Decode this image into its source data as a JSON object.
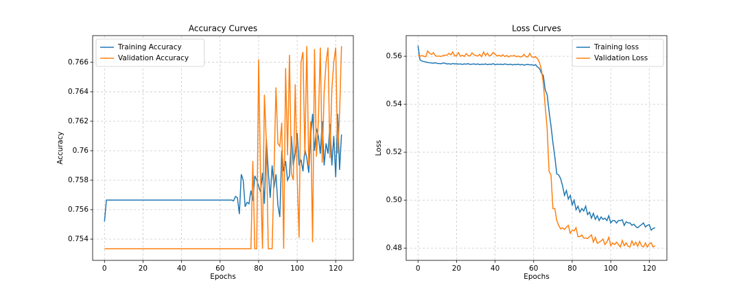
{
  "chart_data": [
    {
      "type": "line",
      "title": "Accuracy Curves",
      "x_label": "Epochs",
      "y_label": "Accuracy",
      "grid": true,
      "legend": "upper left",
      "x": [
        0,
        1,
        2,
        3,
        4,
        5,
        6,
        7,
        8,
        9,
        10,
        11,
        12,
        13,
        14,
        15,
        16,
        17,
        18,
        19,
        20,
        21,
        22,
        23,
        24,
        25,
        26,
        27,
        28,
        29,
        30,
        31,
        32,
        33,
        34,
        35,
        36,
        37,
        38,
        39,
        40,
        41,
        42,
        43,
        44,
        45,
        46,
        47,
        48,
        49,
        50,
        51,
        52,
        53,
        54,
        55,
        56,
        57,
        58,
        59,
        60,
        61,
        62,
        63,
        64,
        65,
        66,
        67,
        68,
        69,
        70,
        71,
        72,
        73,
        74,
        75,
        76,
        77,
        78,
        79,
        80,
        81,
        82,
        83,
        84,
        85,
        86,
        87,
        88,
        89,
        90,
        91,
        92,
        93,
        94,
        95,
        96,
        97,
        98,
        99,
        100,
        101,
        102,
        103,
        104,
        105,
        106,
        107,
        108,
        109,
        110,
        111,
        112,
        113,
        114,
        115,
        116,
        117,
        118,
        119,
        120,
        121,
        122,
        123
      ],
      "xlim": [
        -6.15,
        129.15
      ],
      "xticks": [
        0,
        20,
        40,
        60,
        80,
        100,
        120
      ],
      "ylim": [
        0.75256,
        0.76781
      ],
      "yticks": [
        0.754,
        0.756,
        0.758,
        0.76,
        0.762,
        0.764,
        0.766
      ],
      "series": [
        {
          "name": "Training Accuracy",
          "color": "#1f77b4",
          "values": [
            0.7552,
            0.75665,
            0.75665,
            0.75665,
            0.75665,
            0.75665,
            0.75665,
            0.75665,
            0.75665,
            0.75665,
            0.75665,
            0.75665,
            0.75665,
            0.75665,
            0.75665,
            0.75665,
            0.75665,
            0.75665,
            0.75665,
            0.75665,
            0.75665,
            0.75665,
            0.75665,
            0.75665,
            0.75665,
            0.75665,
            0.75665,
            0.75665,
            0.75665,
            0.75665,
            0.75665,
            0.75665,
            0.75665,
            0.75665,
            0.75665,
            0.75665,
            0.75665,
            0.75665,
            0.75665,
            0.75665,
            0.75665,
            0.75665,
            0.75665,
            0.75665,
            0.75665,
            0.75665,
            0.75665,
            0.75665,
            0.75665,
            0.75665,
            0.75665,
            0.75665,
            0.75665,
            0.75665,
            0.75665,
            0.75665,
            0.75665,
            0.75665,
            0.75665,
            0.75665,
            0.75665,
            0.75665,
            0.75665,
            0.75665,
            0.75665,
            0.75665,
            0.75665,
            0.7566,
            0.7569,
            0.7568,
            0.7557,
            0.7584,
            0.758,
            0.7562,
            0.7565,
            0.7564,
            0.7573,
            0.7566,
            0.7583,
            0.758,
            0.7576,
            0.7572,
            0.7585,
            0.7564,
            0.7608,
            0.7586,
            0.7568,
            0.759,
            0.7575,
            0.7584,
            0.7563,
            0.7555,
            0.76,
            0.7586,
            0.7593,
            0.758,
            0.7583,
            0.761,
            0.759,
            0.7598,
            0.7612,
            0.759,
            0.7594,
            0.7586,
            0.7601,
            0.7595,
            0.7585,
            0.761,
            0.7625,
            0.76,
            0.7615,
            0.761,
            0.7598,
            0.762,
            0.759,
            0.7605,
            0.7598,
            0.7618,
            0.759,
            0.761,
            0.7582,
            0.7625,
            0.7587,
            0.7611
          ]
        },
        {
          "name": "Validation Accuracy",
          "color": "#ff7f0e",
          "values": [
            0.75335,
            0.75335,
            0.75335,
            0.75335,
            0.75335,
            0.75335,
            0.75335,
            0.75335,
            0.75335,
            0.75335,
            0.75335,
            0.75335,
            0.75335,
            0.75335,
            0.75335,
            0.75335,
            0.75335,
            0.75335,
            0.75335,
            0.75335,
            0.75335,
            0.75335,
            0.75335,
            0.75335,
            0.75335,
            0.75335,
            0.75335,
            0.75335,
            0.75335,
            0.75335,
            0.75335,
            0.75335,
            0.75335,
            0.75335,
            0.75335,
            0.75335,
            0.75335,
            0.75335,
            0.75335,
            0.75335,
            0.75335,
            0.75335,
            0.75335,
            0.75335,
            0.75335,
            0.75335,
            0.75335,
            0.75335,
            0.75335,
            0.75335,
            0.75335,
            0.75335,
            0.75335,
            0.75335,
            0.75335,
            0.75335,
            0.75335,
            0.75335,
            0.75335,
            0.75335,
            0.75335,
            0.75335,
            0.75335,
            0.75335,
            0.75335,
            0.75335,
            0.75335,
            0.75335,
            0.75335,
            0.75335,
            0.75335,
            0.75335,
            0.75335,
            0.75335,
            0.75335,
            0.75335,
            0.75335,
            0.7593,
            0.75335,
            0.75335,
            0.7662,
            0.7582,
            0.75335,
            0.7638,
            0.7606,
            0.75335,
            0.75335,
            0.75335,
            0.7587,
            0.7643,
            0.7605,
            0.7603,
            0.7619,
            0.75335,
            0.7656,
            0.7597,
            0.7665,
            0.7585,
            0.758,
            0.7645,
            0.7582,
            0.7541,
            0.766,
            0.7667,
            0.7597,
            0.7671,
            0.759,
            0.762,
            0.7538,
            0.7669,
            0.7596,
            0.762,
            0.767,
            0.7592,
            0.764,
            0.766,
            0.767,
            0.7595,
            0.7642,
            0.766,
            0.767,
            0.7598,
            0.7625,
            0.7671
          ]
        }
      ]
    },
    {
      "type": "line",
      "title": "Loss Curves",
      "x_label": "Epochs",
      "y_label": "Loss",
      "grid": true,
      "legend": "upper right",
      "x": [
        0,
        1,
        2,
        3,
        4,
        5,
        6,
        7,
        8,
        9,
        10,
        11,
        12,
        13,
        14,
        15,
        16,
        17,
        18,
        19,
        20,
        21,
        22,
        23,
        24,
        25,
        26,
        27,
        28,
        29,
        30,
        31,
        32,
        33,
        34,
        35,
        36,
        37,
        38,
        39,
        40,
        41,
        42,
        43,
        44,
        45,
        46,
        47,
        48,
        49,
        50,
        51,
        52,
        53,
        54,
        55,
        56,
        57,
        58,
        59,
        60,
        61,
        62,
        63,
        64,
        65,
        66,
        67,
        68,
        69,
        70,
        71,
        72,
        73,
        74,
        75,
        76,
        77,
        78,
        79,
        80,
        81,
        82,
        83,
        84,
        85,
        86,
        87,
        88,
        89,
        90,
        91,
        92,
        93,
        94,
        95,
        96,
        97,
        98,
        99,
        100,
        101,
        102,
        103,
        104,
        105,
        106,
        107,
        108,
        109,
        110,
        111,
        112,
        113,
        114,
        115,
        116,
        117,
        118,
        119,
        120,
        121,
        122,
        123
      ],
      "xlim": [
        -6.15,
        129.15
      ],
      "xticks": [
        0,
        20,
        40,
        60,
        80,
        100,
        120
      ],
      "ylim": [
        0.4749,
        0.5686
      ],
      "yticks": [
        0.48,
        {
          "value": 0.5,
          "label": "0.50"
        },
        0.52,
        0.54,
        0.56
      ],
      "series": [
        {
          "name": "Training loss",
          "color": "#1f77b4",
          "values": [
            0.5644,
            0.5585,
            0.558,
            0.5578,
            0.5576,
            0.5574,
            0.5573,
            0.5572,
            0.5571,
            0.5573,
            0.557,
            0.557,
            0.5569,
            0.5572,
            0.5571,
            0.5568,
            0.5569,
            0.5567,
            0.557,
            0.5568,
            0.5569,
            0.5567,
            0.5568,
            0.5566,
            0.5568,
            0.5567,
            0.5569,
            0.5566,
            0.5567,
            0.5568,
            0.5566,
            0.5568,
            0.5565,
            0.5567,
            0.5566,
            0.5568,
            0.5565,
            0.5567,
            0.5566,
            0.5569,
            0.5565,
            0.5567,
            0.5566,
            0.5567,
            0.5565,
            0.5568,
            0.5566,
            0.5565,
            0.5567,
            0.5564,
            0.5566,
            0.5565,
            0.5567,
            0.5564,
            0.5566,
            0.5563,
            0.5565,
            0.5566,
            0.5564,
            0.5565,
            0.5562,
            0.5565,
            0.5555,
            0.555,
            0.553,
            0.552,
            0.546,
            0.544,
            0.537,
            0.531,
            0.524,
            0.518,
            0.511,
            0.5105,
            0.509,
            0.506,
            0.502,
            0.504,
            0.5005,
            0.502,
            0.498,
            0.5,
            0.496,
            0.4975,
            0.495,
            0.4965,
            0.4955,
            0.4975,
            0.494,
            0.495,
            0.4925,
            0.4945,
            0.492,
            0.4935,
            0.4915,
            0.493,
            0.492,
            0.4925,
            0.4915,
            0.4935,
            0.4905,
            0.4915,
            0.4915,
            0.4905,
            0.4915,
            0.4915,
            0.4918,
            0.4895,
            0.491,
            0.4905,
            0.4905,
            0.4895,
            0.49,
            0.489,
            0.4885,
            0.4892,
            0.4898,
            0.4905,
            0.4888,
            0.4895,
            0.4898,
            0.4875,
            0.4882,
            0.4885
          ]
        },
        {
          "name": "Validation Loss",
          "color": "#ff7f0e",
          "values": [
            0.5605,
            0.56,
            0.5603,
            0.56,
            0.5598,
            0.5622,
            0.5612,
            0.5608,
            0.5615,
            0.5602,
            0.56,
            0.5601,
            0.5599,
            0.5603,
            0.5605,
            0.5604,
            0.5612,
            0.5606,
            0.5618,
            0.5601,
            0.5603,
            0.5615,
            0.56,
            0.5604,
            0.5599,
            0.5611,
            0.5603,
            0.5601,
            0.5614,
            0.5606,
            0.5603,
            0.5601,
            0.5608,
            0.5598,
            0.5618,
            0.5603,
            0.5613,
            0.5601,
            0.5605,
            0.5616,
            0.5608,
            0.5601,
            0.5604,
            0.56,
            0.5606,
            0.5599,
            0.5603,
            0.5597,
            0.5602,
            0.5601,
            0.5603,
            0.5598,
            0.5601,
            0.5597,
            0.5599,
            0.5608,
            0.5598,
            0.5597,
            0.5612,
            0.5598,
            0.5595,
            0.5598,
            0.559,
            0.5575,
            0.5545,
            0.549,
            0.539,
            0.53,
            0.512,
            0.5105,
            0.4965,
            0.4965,
            0.4915,
            0.4895,
            0.488,
            0.4885,
            0.4878,
            0.4888,
            0.4895,
            0.4862,
            0.4875,
            0.4872,
            0.4885,
            0.4848,
            0.4848,
            0.4855,
            0.4842,
            0.4842,
            0.484,
            0.4848,
            0.4855,
            0.4825,
            0.4845,
            0.482,
            0.4825,
            0.483,
            0.4838,
            0.4815,
            0.4825,
            0.4845,
            0.481,
            0.4822,
            0.4815,
            0.4825,
            0.4815,
            0.4805,
            0.4832,
            0.481,
            0.4822,
            0.4808,
            0.4805,
            0.483,
            0.4812,
            0.4825,
            0.4808,
            0.4828,
            0.481,
            0.4805,
            0.4822,
            0.4805,
            0.4818,
            0.4822,
            0.4805,
            0.481
          ]
        }
      ]
    }
  ]
}
